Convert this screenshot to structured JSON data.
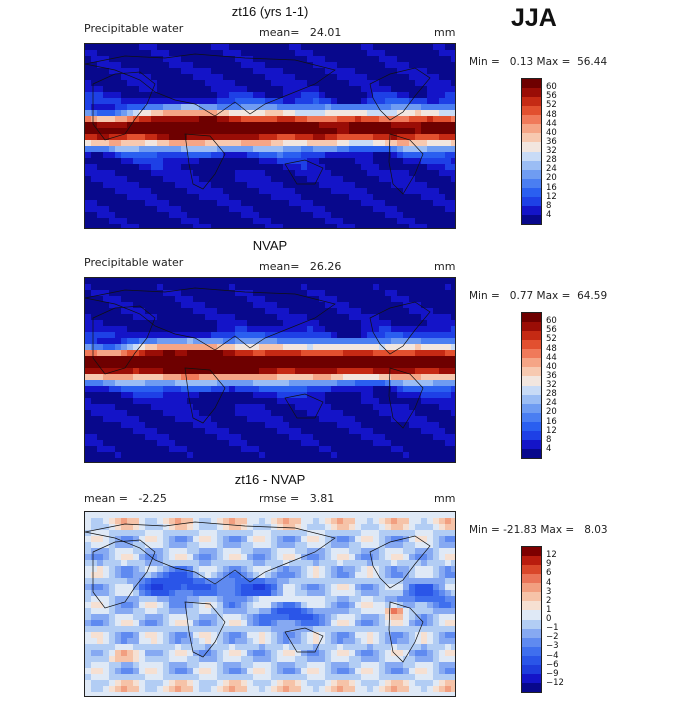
{
  "season": "JJA",
  "chart_data": [
    {
      "type": "heatmap",
      "title": "zt16 (yrs 1-1)",
      "variable": "Precipitable water",
      "mean_label": "mean=",
      "mean": "24.01",
      "units": "mm",
      "min_label": "Min =",
      "min": "0.13",
      "max_label": "Max =",
      "max": "56.44",
      "colorbar_levels": [
        "4",
        "8",
        "12",
        "16",
        "20",
        "24",
        "28",
        "32",
        "36",
        "40",
        "44",
        "48",
        "52",
        "56",
        "60"
      ],
      "colorbar_colors": [
        "#08088c",
        "#1414c8",
        "#1e40e6",
        "#2a5ff0",
        "#4a7ef2",
        "#6f9cf2",
        "#9bbdf4",
        "#c8dbf6",
        "#f2e6df",
        "#f7c9b0",
        "#f5a586",
        "#f07a5a",
        "#e2502f",
        "#c52a14",
        "#9a0d06",
        "#6e0000"
      ],
      "field": "model"
    },
    {
      "type": "heatmap",
      "title": "NVAP",
      "variable": "Precipitable water",
      "mean_label": "mean=",
      "mean": "26.26",
      "units": "mm",
      "min_label": "Min =",
      "min": "0.77",
      "max_label": "Max =",
      "max": "64.59",
      "colorbar_levels": [
        "4",
        "8",
        "12",
        "16",
        "20",
        "24",
        "28",
        "32",
        "36",
        "40",
        "44",
        "48",
        "52",
        "56",
        "60"
      ],
      "colorbar_colors": [
        "#08088c",
        "#1414c8",
        "#1e40e6",
        "#2a5ff0",
        "#4a7ef2",
        "#6f9cf2",
        "#9bbdf4",
        "#c8dbf6",
        "#f2e6df",
        "#f7c9b0",
        "#f5a586",
        "#f07a5a",
        "#e2502f",
        "#c52a14",
        "#9a0d06",
        "#6e0000"
      ],
      "field": "obs"
    },
    {
      "type": "heatmap",
      "title": "zt16 - NVAP",
      "mean_label": "mean =",
      "mean": "-2.25",
      "rmse_label": "rmse =",
      "rmse": "3.81",
      "units": "mm",
      "min_label": "Min =",
      "min": "-21.83",
      "max_label": "Max =",
      "max": "8.03",
      "colorbar_levels": [
        "-12",
        "-9",
        "-6",
        "-4",
        "-3",
        "-2",
        "-1",
        "0",
        "1",
        "2",
        "3",
        "4",
        "6",
        "9",
        "12"
      ],
      "colorbar_colors": [
        "#08088c",
        "#1414c8",
        "#1e3cdc",
        "#2a55e8",
        "#3f6fee",
        "#5f8af0",
        "#86a9f2",
        "#b2cdf4",
        "#dfe9f6",
        "#f6e0d2",
        "#f6c3a8",
        "#f29f80",
        "#ea7458",
        "#d9472a",
        "#b91c0e",
        "#7e0000"
      ],
      "field": "diff"
    }
  ]
}
